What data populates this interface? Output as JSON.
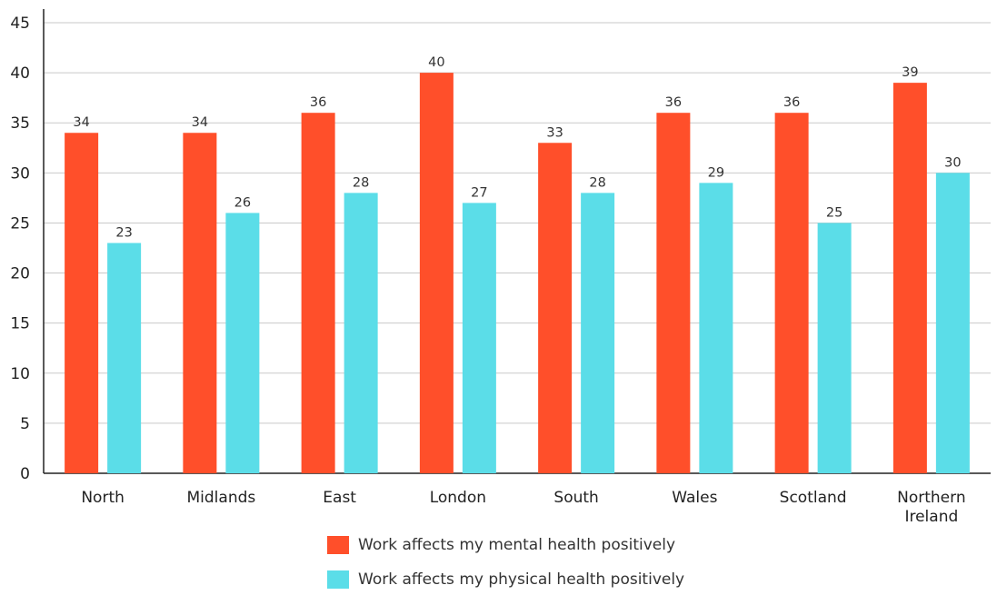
{
  "chart_data": {
    "type": "bar",
    "categories": [
      [
        "North"
      ],
      [
        "Midlands"
      ],
      [
        "East"
      ],
      [
        "London"
      ],
      [
        "South"
      ],
      [
        "Wales"
      ],
      [
        "Scotland"
      ],
      [
        "Northern",
        "Ireland"
      ]
    ],
    "series": [
      {
        "name": "Work affects my mental health positively",
        "color": "#ff4f2a",
        "values": [
          34,
          34,
          36,
          40,
          33,
          36,
          36,
          39
        ]
      },
      {
        "name": "Work affects my physical health positively",
        "color": "#5bdde8",
        "values": [
          23,
          26,
          28,
          27,
          28,
          29,
          25,
          30
        ]
      }
    ],
    "yticks": [
      0,
      5,
      10,
      15,
      20,
      25,
      30,
      35,
      40,
      45
    ],
    "ylim": [
      0,
      45
    ],
    "grid": true,
    "legend_position": "bottom"
  }
}
